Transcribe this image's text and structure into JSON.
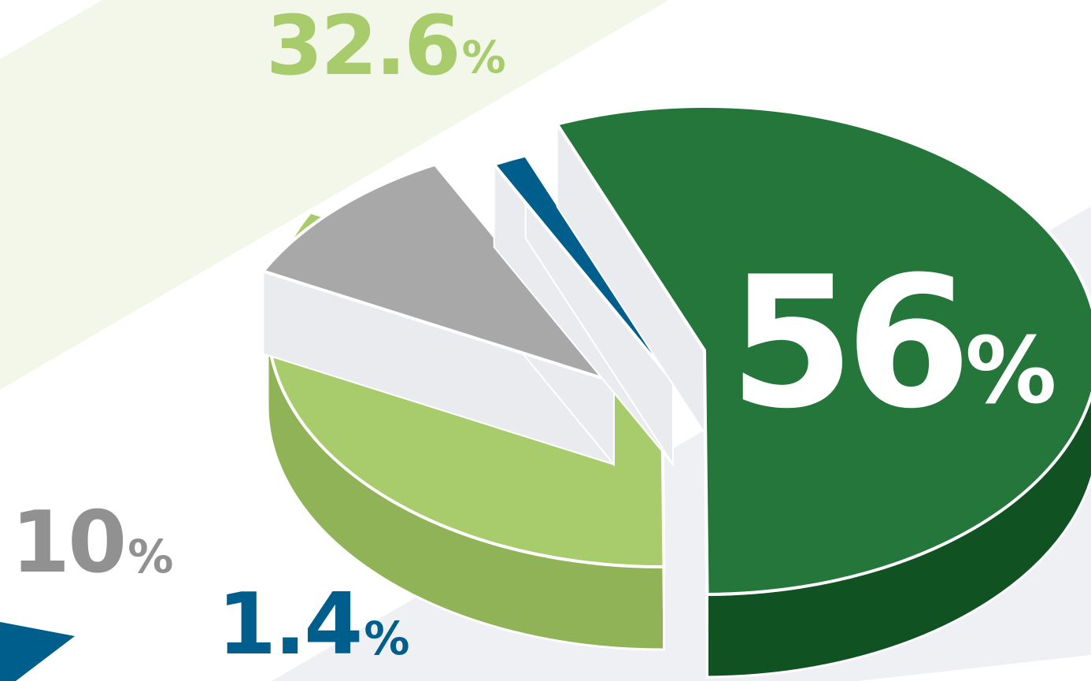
{
  "chart_data": {
    "type": "pie",
    "title": "",
    "slices": [
      {
        "label": "56%",
        "value": 56,
        "color": "#24763b",
        "side_color": "#115223"
      },
      {
        "label": "32.6%",
        "value": 32.6,
        "color": "#a8cc6c",
        "side_color": "#8fb356"
      },
      {
        "label": "10%",
        "value": 10,
        "color": "#a8a8a8",
        "side_color": "#8e8e8e"
      },
      {
        "label": "1.4%",
        "value": 1.4,
        "color": "#005e8c",
        "side_color": "#00476b"
      }
    ]
  },
  "labels": {
    "main": {
      "num": "56",
      "sign": "%"
    },
    "light": {
      "num": "32.6",
      "sign": "%"
    },
    "gray": {
      "num": "10",
      "sign": "%"
    },
    "blue": {
      "num": "1.4",
      "sign": "%"
    }
  },
  "colors": {
    "background": "#ffffff",
    "band_green": "#f2f7ea",
    "band_gray": "#eef0f4",
    "ground_white": "#ffffff",
    "label_main": "#ffffff",
    "label_light": "#a8cc6c",
    "label_gray": "#919191",
    "label_blue": "#005e8c",
    "outline": "#ffffff"
  }
}
